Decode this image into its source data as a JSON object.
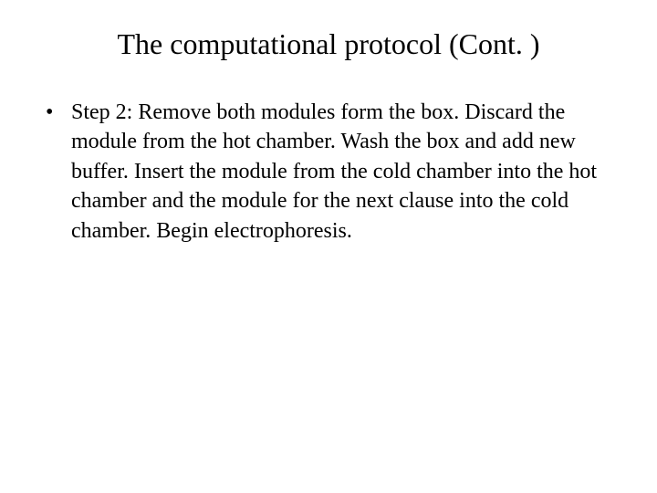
{
  "slide": {
    "title": "The computational protocol (Cont. )",
    "bullets": [
      {
        "text": "Step 2: Remove both modules form the box. Discard the module from the hot chamber. Wash the box and add new buffer. Insert the module from the cold chamber into the hot chamber and the module for the next clause into the cold chamber. Begin electrophoresis."
      }
    ],
    "styling": {
      "title_fontsize": 32,
      "body_fontsize": 24,
      "font_family": "Times New Roman",
      "text_color": "#000000",
      "background_color": "#ffffff",
      "line_height": 1.35
    }
  }
}
